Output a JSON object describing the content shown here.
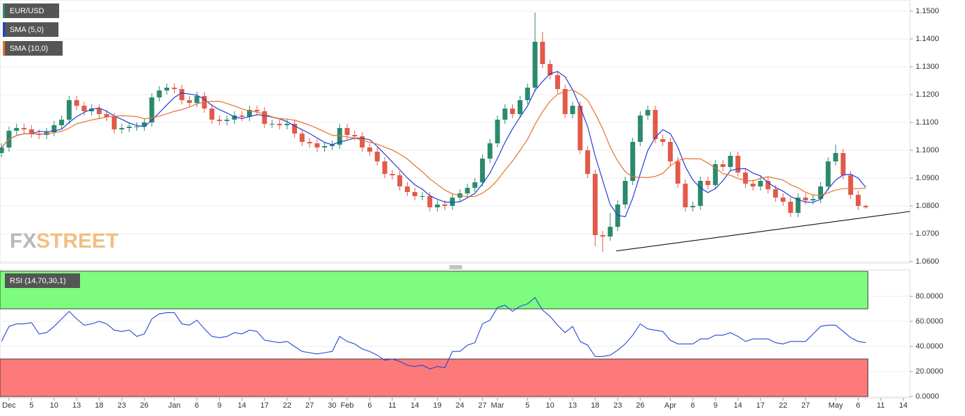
{
  "chart_data": [
    {
      "type": "candlestick",
      "title": "EUR/USD",
      "up_color": "#2b8a6e",
      "down_color": "#e25a4a",
      "watermark_parts": [
        "FX",
        "STREET"
      ],
      "open": [
        1.099,
        1.101,
        1.107,
        1.108,
        1.1075,
        1.106,
        1.1055,
        1.1065,
        1.109,
        1.111,
        1.118,
        1.116,
        1.114,
        1.115,
        1.113,
        1.112,
        1.1075,
        1.108,
        1.1085,
        1.1085,
        1.11,
        1.119,
        1.1215,
        1.1225,
        1.122,
        1.118,
        1.117,
        1.1195,
        1.115,
        1.111,
        1.1105,
        1.111,
        1.1125,
        1.112,
        1.1145,
        1.114,
        1.1095,
        1.1095,
        1.109,
        1.1095,
        1.106,
        1.103,
        1.1025,
        1.101,
        1.1015,
        1.102,
        1.108,
        1.1055,
        1.105,
        1.101,
        1.0995,
        1.096,
        1.0915,
        1.091,
        1.087,
        1.085,
        1.0835,
        1.0835,
        1.0795,
        1.0805,
        1.08,
        1.083,
        1.0845,
        1.0865,
        1.0885,
        1.097,
        1.1025,
        1.111,
        1.115,
        1.113,
        1.118,
        1.1225,
        1.139,
        1.131,
        1.127,
        1.122,
        1.113,
        1.116,
        1.1,
        1.0915,
        1.0695,
        1.069,
        1.0725,
        1.0805,
        1.089,
        1.103,
        1.1125,
        1.1145,
        1.104,
        1.103,
        1.096,
        1.088,
        1.0795,
        1.08,
        1.089,
        1.0875,
        1.095,
        1.094,
        1.098,
        1.092,
        1.088,
        1.087,
        1.089,
        1.086,
        1.083,
        1.0815,
        1.0775,
        1.083,
        1.082,
        1.0825,
        1.087,
        1.096,
        1.099,
        1.091,
        1.084,
        1.08
      ],
      "high": [
        1.1025,
        1.1085,
        1.1095,
        1.1095,
        1.109,
        1.1075,
        1.108,
        1.1105,
        1.1125,
        1.1195,
        1.1195,
        1.1175,
        1.1165,
        1.1165,
        1.1145,
        1.1135,
        1.1095,
        1.11,
        1.11,
        1.1115,
        1.1205,
        1.123,
        1.124,
        1.124,
        1.1235,
        1.1195,
        1.121,
        1.121,
        1.1165,
        1.1125,
        1.1125,
        1.114,
        1.114,
        1.116,
        1.116,
        1.1155,
        1.111,
        1.111,
        1.111,
        1.111,
        1.1075,
        1.1045,
        1.104,
        1.103,
        1.1035,
        1.1095,
        1.1095,
        1.107,
        1.1065,
        1.1025,
        1.101,
        1.0975,
        1.093,
        1.0925,
        1.0885,
        1.0865,
        1.085,
        1.085,
        1.082,
        1.082,
        1.0845,
        1.086,
        1.088,
        1.09,
        1.0985,
        1.104,
        1.1125,
        1.1165,
        1.1165,
        1.1195,
        1.124,
        1.1495,
        1.1425,
        1.1325,
        1.1285,
        1.1235,
        1.1175,
        1.1175,
        1.1015,
        1.093,
        1.071,
        1.0775,
        1.082,
        1.0905,
        1.1045,
        1.114,
        1.116,
        1.116,
        1.1055,
        1.1045,
        1.0975,
        1.0895,
        1.0815,
        1.0905,
        1.0905,
        1.0965,
        1.0965,
        1.0995,
        1.0995,
        1.0935,
        1.0895,
        1.0905,
        1.0905,
        1.0875,
        1.0845,
        1.083,
        1.0845,
        1.0845,
        1.084,
        1.0885,
        1.0975,
        1.102,
        1.1005,
        1.0925,
        1.0855,
        1.0805
      ],
      "low": [
        1.0975,
        1.0995,
        1.1055,
        1.106,
        1.1045,
        1.104,
        1.104,
        1.105,
        1.1075,
        1.1095,
        1.1145,
        1.1125,
        1.1125,
        1.1115,
        1.1105,
        1.106,
        1.106,
        1.1065,
        1.107,
        1.107,
        1.1085,
        1.1175,
        1.12,
        1.1205,
        1.1165,
        1.1155,
        1.1155,
        1.1135,
        1.1095,
        1.109,
        1.109,
        1.1095,
        1.1105,
        1.1105,
        1.1125,
        1.108,
        1.108,
        1.1075,
        1.1075,
        1.1045,
        1.1015,
        1.101,
        1.0995,
        1.0995,
        1.1,
        1.1005,
        1.104,
        1.1035,
        1.0995,
        1.098,
        1.0945,
        1.09,
        1.0895,
        1.0855,
        1.0835,
        1.082,
        1.082,
        1.078,
        1.078,
        1.0785,
        1.0785,
        1.0815,
        1.083,
        1.085,
        1.087,
        1.0955,
        1.101,
        1.1095,
        1.1115,
        1.1115,
        1.1165,
        1.121,
        1.1295,
        1.1255,
        1.1205,
        1.1115,
        1.1115,
        1.0985,
        1.09,
        1.0655,
        1.0635,
        1.0675,
        1.071,
        1.079,
        1.0875,
        1.1015,
        1.111,
        1.1025,
        1.1015,
        1.0945,
        1.0865,
        1.078,
        1.078,
        1.0785,
        1.086,
        1.086,
        1.0925,
        1.0925,
        1.0905,
        1.0865,
        1.0855,
        1.0855,
        1.0845,
        1.0815,
        1.08,
        1.076,
        1.076,
        1.0805,
        1.0805,
        1.081,
        1.0855,
        1.0945,
        1.0895,
        1.0825,
        1.0785,
        1.079
      ],
      "close": [
        1.101,
        1.107,
        1.108,
        1.1075,
        1.106,
        1.1055,
        1.1065,
        1.109,
        1.111,
        1.118,
        1.116,
        1.114,
        1.115,
        1.113,
        1.112,
        1.1075,
        1.108,
        1.1085,
        1.1085,
        1.11,
        1.119,
        1.1215,
        1.1225,
        1.122,
        1.118,
        1.117,
        1.1195,
        1.115,
        1.111,
        1.1105,
        1.111,
        1.1125,
        1.112,
        1.1145,
        1.114,
        1.1095,
        1.1095,
        1.109,
        1.1095,
        1.106,
        1.103,
        1.1025,
        1.101,
        1.1015,
        1.102,
        1.108,
        1.1055,
        1.105,
        1.101,
        1.0995,
        1.096,
        1.0915,
        1.091,
        1.087,
        1.085,
        1.0835,
        1.0835,
        1.0795,
        1.0805,
        1.08,
        1.083,
        1.0845,
        1.0865,
        1.0885,
        1.097,
        1.1025,
        1.111,
        1.115,
        1.113,
        1.118,
        1.1225,
        1.139,
        1.131,
        1.127,
        1.122,
        1.113,
        1.116,
        1.1,
        1.0915,
        1.0695,
        1.069,
        1.0725,
        1.0805,
        1.089,
        1.103,
        1.1125,
        1.1145,
        1.104,
        1.103,
        1.096,
        1.088,
        1.0795,
        1.08,
        1.089,
        1.0875,
        1.095,
        1.094,
        1.098,
        1.092,
        1.088,
        1.087,
        1.089,
        1.086,
        1.083,
        1.0815,
        1.0775,
        1.083,
        1.082,
        1.0825,
        1.087,
        1.096,
        1.099,
        1.091,
        1.084,
        1.08,
        1.0795
      ],
      "series": [
        {
          "name": "SMA (5,0)",
          "color": "#1f3fd6",
          "values": [
            1.101,
            1.104,
            1.1053,
            1.1059,
            1.1059,
            1.1068,
            1.1067,
            1.1069,
            1.1076,
            1.11,
            1.1121,
            1.1136,
            1.1148,
            1.1152,
            1.114,
            1.1123,
            1.1111,
            1.1098,
            1.1089,
            1.1085,
            1.1108,
            1.1135,
            1.1163,
            1.119,
            1.1206,
            1.1202,
            1.1198,
            1.1183,
            1.1161,
            1.1146,
            1.1134,
            1.112,
            1.1114,
            1.1121,
            1.1128,
            1.1125,
            1.1119,
            1.1113,
            1.1103,
            1.1087,
            1.1074,
            1.106,
            1.1044,
            1.1028,
            1.102,
            1.103,
            1.1036,
            1.1044,
            1.1043,
            1.1038,
            1.1014,
            1.0986,
            1.0958,
            1.093,
            1.0901,
            1.0876,
            1.086,
            1.0837,
            1.0824,
            1.0814,
            1.0813,
            1.0815,
            1.0829,
            1.0845,
            1.0879,
            1.0918,
            1.0971,
            1.1028,
            1.1077,
            1.1119,
            1.1159,
            1.1215,
            1.1247,
            1.1275,
            1.1283,
            1.1264,
            1.1218,
            1.1156,
            1.1085,
            1.098,
            1.0892,
            1.0805,
            1.0766,
            1.0761,
            1.0828,
            1.0915,
            1.0999,
            1.1046,
            1.1074,
            1.106,
            1.1011,
            1.0941,
            1.0893,
            1.0865,
            1.0848,
            1.0862,
            1.0891,
            1.0927,
            1.0933,
            1.0934,
            1.0918,
            1.0908,
            1.0884,
            1.0866,
            1.0853,
            1.0834,
            1.0822,
            1.0814,
            1.0813,
            1.0824,
            1.0861,
            1.0893,
            1.0911,
            1.0914,
            1.09,
            1.0867
          ]
        },
        {
          "name": "SMA (10,0)",
          "color": "#e8702a",
          "values": [
            1.101,
            1.104,
            1.1053,
            1.1059,
            1.1059,
            1.1058,
            1.1059,
            1.1063,
            1.1068,
            1.108,
            1.1095,
            1.1102,
            1.1109,
            1.1114,
            1.112,
            1.1122,
            1.1124,
            1.1123,
            1.1121,
            1.1113,
            1.1116,
            1.1123,
            1.1131,
            1.114,
            1.1146,
            1.1155,
            1.1167,
            1.1173,
            1.1176,
            1.1176,
            1.1168,
            1.1159,
            1.1149,
            1.1141,
            1.1137,
            1.113,
            1.112,
            1.1114,
            1.1112,
            1.1108,
            1.11,
            1.109,
            1.1079,
            1.1066,
            1.1054,
            1.1052,
            1.1048,
            1.1044,
            1.1036,
            1.1029,
            1.1022,
            1.1011,
            1.1001,
            1.0986,
            1.0969,
            1.0945,
            1.0923,
            1.0897,
            1.0877,
            1.0857,
            1.0844,
            1.0837,
            1.0833,
            1.0834,
            1.0846,
            1.0865,
            1.0893,
            1.0928,
            1.0961,
            1.0999,
            1.1039,
            1.1093,
            1.1138,
            1.1176,
            1.1201,
            1.1212,
            1.1217,
            1.1202,
            1.118,
            1.1132,
            1.1078,
            1.1012,
            1.0961,
            1.0923,
            1.0904,
            1.0903,
            1.0902,
            1.0906,
            1.0917,
            1.0944,
            1.0963,
            1.097,
            1.0969,
            1.0969,
            1.0954,
            1.0936,
            1.0916,
            1.091,
            1.0899,
            1.0891,
            1.089,
            1.0899,
            1.0905,
            1.0899,
            1.0893,
            1.0876,
            1.0865,
            1.0849,
            1.0839,
            1.0838,
            1.0847,
            1.0857,
            1.0862,
            1.0863,
            1.0862,
            1.0864
          ]
        }
      ],
      "trendline": {
        "start": [
          81.8,
          1.0638
        ],
        "end": [
          120.9,
          1.078
        ],
        "color": "#111111"
      },
      "xlim": [
        -0.2,
        120.9
      ],
      "ylim": [
        1.0595,
        1.154
      ],
      "yticks": [
        {
          "value": 1.15,
          "label": "1.1500"
        },
        {
          "value": 1.14,
          "label": "1.1400"
        },
        {
          "value": 1.13,
          "label": "1.1300"
        },
        {
          "value": 1.12,
          "label": "1.1200"
        },
        {
          "value": 1.11,
          "label": "1.1100"
        },
        {
          "value": 1.1,
          "label": "1.1000"
        },
        {
          "value": 1.09,
          "label": "1.0900"
        },
        {
          "value": 1.08,
          "label": "1.0800"
        },
        {
          "value": 1.07,
          "label": "1.0700"
        },
        {
          "value": 1.06,
          "label": "1.0600"
        }
      ],
      "grid": true
    },
    {
      "type": "line",
      "title": "RSI (14,70,30,1)",
      "color": "#2846d8",
      "values": [
        44,
        56,
        58,
        58,
        59,
        50,
        51,
        56,
        62,
        68,
        62,
        57,
        58,
        60,
        58,
        53,
        52,
        53,
        48,
        50,
        62,
        66,
        67,
        67,
        58,
        57,
        61,
        54,
        48,
        47,
        48,
        51,
        50,
        53,
        52,
        45,
        44,
        43,
        44,
        40,
        36,
        35,
        34,
        35,
        36,
        48,
        44,
        42,
        38,
        36,
        33,
        29,
        30,
        28,
        25,
        24,
        25,
        22,
        24,
        23,
        36,
        36,
        41,
        43,
        58,
        61,
        71,
        73,
        68,
        72,
        74,
        79,
        69,
        64,
        57,
        51,
        56,
        44,
        41,
        32,
        32,
        33,
        37,
        42,
        49,
        58,
        54,
        53,
        52,
        45,
        42,
        42,
        42,
        46,
        46,
        49,
        49,
        51,
        48,
        44,
        46,
        46,
        46,
        43,
        42,
        44,
        44,
        44,
        50,
        56,
        57,
        57,
        52,
        47,
        44,
        43
      ],
      "overbought_zone": [
        70,
        100
      ],
      "overbought_color": "#7dfc7d",
      "oversold_zone": [
        0,
        30
      ],
      "oversold_color": "#fc7a7a",
      "zone_end": 115.3,
      "xlim": [
        -0.2,
        120.9
      ],
      "ylim": [
        -1.1,
        101.1
      ],
      "yticks": [
        {
          "value": 80,
          "label": "80.0000"
        },
        {
          "value": 60,
          "label": "60.0000"
        },
        {
          "value": 40,
          "label": "40.0000"
        },
        {
          "value": 20,
          "label": "20.0000"
        },
        {
          "value": 0,
          "label": "0.0000"
        }
      ],
      "xticks": [
        {
          "value": 1,
          "label": "Dec"
        },
        {
          "value": 4,
          "label": "5"
        },
        {
          "value": 7,
          "label": "10"
        },
        {
          "value": 10,
          "label": "13"
        },
        {
          "value": 13,
          "label": "18"
        },
        {
          "value": 16,
          "label": "23"
        },
        {
          "value": 19,
          "label": "26"
        },
        {
          "value": 23,
          "label": "Jan"
        },
        {
          "value": 26,
          "label": "6"
        },
        {
          "value": 29,
          "label": "9"
        },
        {
          "value": 32,
          "label": "14"
        },
        {
          "value": 35,
          "label": "17"
        },
        {
          "value": 38,
          "label": "22"
        },
        {
          "value": 41,
          "label": "27"
        },
        {
          "value": 44,
          "label": "30"
        },
        {
          "value": 46,
          "label": "Feb"
        },
        {
          "value": 49,
          "label": "6"
        },
        {
          "value": 52,
          "label": "11"
        },
        {
          "value": 55,
          "label": "14"
        },
        {
          "value": 58,
          "label": "19"
        },
        {
          "value": 61,
          "label": "24"
        },
        {
          "value": 64,
          "label": "27"
        },
        {
          "value": 66,
          "label": "Mar"
        },
        {
          "value": 70,
          "label": "5"
        },
        {
          "value": 73,
          "label": "10"
        },
        {
          "value": 76,
          "label": "13"
        },
        {
          "value": 79,
          "label": "18"
        },
        {
          "value": 82,
          "label": "23"
        },
        {
          "value": 85,
          "label": "26"
        },
        {
          "value": 89,
          "label": "Apr"
        },
        {
          "value": 92,
          "label": "6"
        },
        {
          "value": 95,
          "label": "9"
        },
        {
          "value": 98,
          "label": "14"
        },
        {
          "value": 101,
          "label": "17"
        },
        {
          "value": 104,
          "label": "22"
        },
        {
          "value": 107,
          "label": "27"
        },
        {
          "value": 111,
          "label": "May"
        },
        {
          "value": 114,
          "label": "6"
        },
        {
          "value": 117,
          "label": "11"
        },
        {
          "value": 120,
          "label": "14"
        }
      ],
      "grid": true
    }
  ]
}
